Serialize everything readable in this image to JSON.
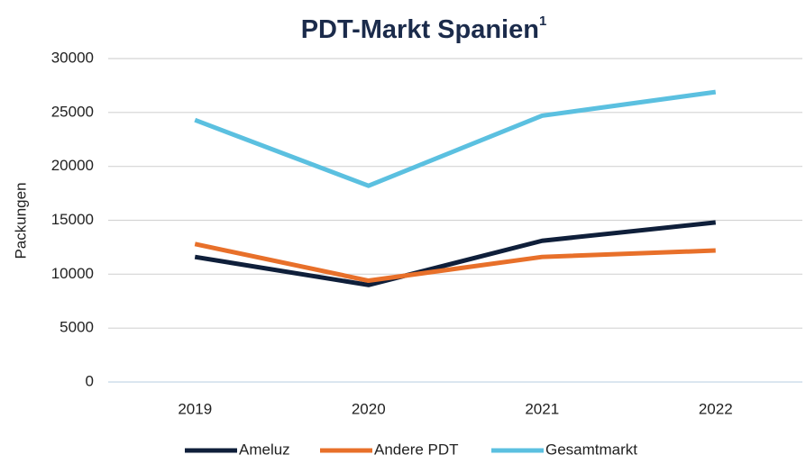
{
  "chart_data": {
    "type": "line",
    "title": "PDT-Markt Spanien",
    "title_superscript": "1",
    "y_label": "Packungen",
    "categories": [
      "2019",
      "2020",
      "2021",
      "2022"
    ],
    "series": [
      {
        "name": "Ameluz",
        "color": "#0f1f3a",
        "values": [
          11600,
          9000,
          13100,
          14800
        ]
      },
      {
        "name": "Andere PDT",
        "color": "#e8702a",
        "values": [
          12800,
          9400,
          11600,
          12200
        ]
      },
      {
        "name": "Gesamtmarkt",
        "color": "#5bc0e0",
        "values": [
          24300,
          18200,
          24700,
          26900
        ]
      }
    ],
    "ylim": [
      0,
      30000
    ],
    "yticks": [
      0,
      5000,
      10000,
      15000,
      20000,
      25000,
      30000
    ],
    "grid": true,
    "legend": "bottom"
  }
}
